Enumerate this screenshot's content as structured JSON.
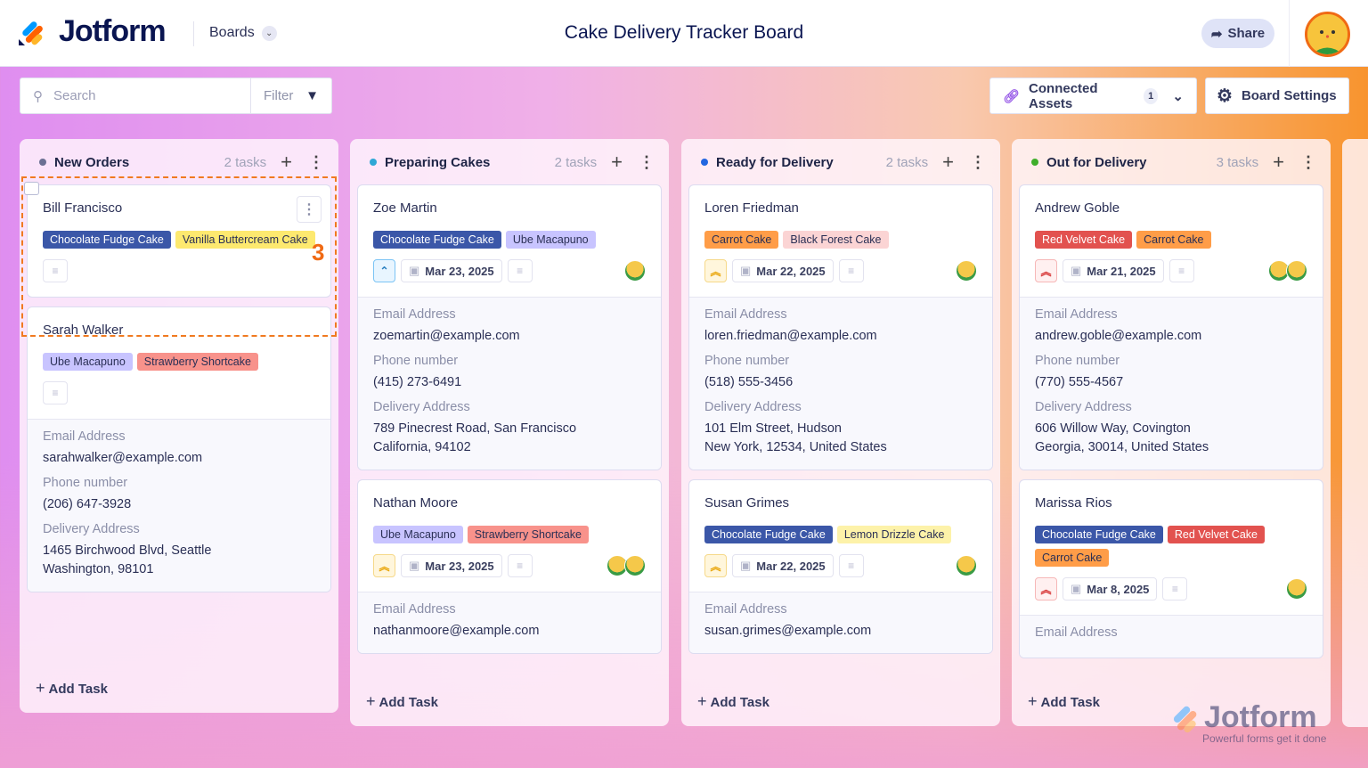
{
  "header": {
    "logo": "Jotform",
    "boards_label": "Boards",
    "title": "Cake Delivery Tracker Board",
    "share_label": "Share"
  },
  "toolbar": {
    "search_placeholder": "Search",
    "filter_label": "Filter",
    "connected_assets_label": "Connected Assets",
    "connected_assets_count": "1",
    "board_settings_label": "Board Settings"
  },
  "colors": {
    "accent": "#f06a14",
    "brand_navy": "#0a1551"
  },
  "tag_colors": {
    "Chocolate Fudge Cake": [
      "#3b57a8",
      "#ffffff"
    ],
    "Vanilla Buttercream Cake": [
      "#fde96f",
      "#2a2f55"
    ],
    "Ube Macapuno": [
      "#c8c4ff",
      "#2a2f55"
    ],
    "Strawberry Shortcake": [
      "#f8928b",
      "#2a2f55"
    ],
    "Carrot Cake": [
      "#ff9d48",
      "#2a2f55"
    ],
    "Black Forest Cake": [
      "#fbd4d4",
      "#2a2f55"
    ],
    "Red Velvet Cake": [
      "#e2524f",
      "#ffffff"
    ],
    "Lemon Drizzle Cake": [
      "#fdf2a9",
      "#2a2f55"
    ]
  },
  "labels": {
    "email": "Email Address",
    "phone": "Phone number",
    "address": "Delivery Address",
    "add_task": "Add Task"
  },
  "selection_badge": "3",
  "watermark": {
    "text": "Jotform",
    "tagline": "Powerful forms get it done"
  },
  "columns": [
    {
      "title": "New Orders",
      "count": "2 tasks",
      "dot": "#6b6f93",
      "cards": [
        {
          "name": "Bill Francisco",
          "tags": [
            "Chocolate Fudge Cake",
            "Vanilla Buttercream Cake"
          ],
          "selected": true
        },
        {
          "name": "Sarah Walker",
          "tags": [
            "Ube Macapuno",
            "Strawberry Shortcake"
          ],
          "email": "sarahwalker@example.com",
          "phone": "(206) 647-3928",
          "address": [
            "1465 Birchwood Blvd, Seattle",
            "Washington, 98101"
          ]
        }
      ]
    },
    {
      "title": "Preparing Cakes",
      "count": "2 tasks",
      "dot": "#2ea7d6",
      "cards": [
        {
          "name": "Zoe Martin",
          "tags": [
            "Chocolate Fudge Cake",
            "Ube Macapuno"
          ],
          "priority": "low",
          "date": "Mar 23, 2025",
          "avatars": 1,
          "email": "zoemartin@example.com",
          "phone": "(415) 273-6491",
          "address": [
            "789 Pinecrest Road, San Francisco",
            "California, 94102"
          ]
        },
        {
          "name": "Nathan Moore",
          "tags": [
            "Ube Macapuno",
            "Strawberry Shortcake"
          ],
          "priority": "medium",
          "date": "Mar 23, 2025",
          "avatars": 2,
          "email": "nathanmoore@example.com"
        }
      ]
    },
    {
      "title": "Ready for Delivery",
      "count": "2 tasks",
      "dot": "#2266e0",
      "cards": [
        {
          "name": "Loren Friedman",
          "tags": [
            "Carrot Cake",
            "Black Forest Cake"
          ],
          "priority": "medium",
          "date": "Mar 22, 2025",
          "avatars": 1,
          "email": "loren.friedman@example.com",
          "phone": "(518) 555-3456",
          "address": [
            "101 Elm Street, Hudson",
            "New York, 12534, United States"
          ]
        },
        {
          "name": "Susan Grimes",
          "tags": [
            "Chocolate Fudge Cake",
            "Lemon Drizzle Cake"
          ],
          "priority": "medium",
          "date": "Mar 22, 2025",
          "avatars": 1,
          "email": "susan.grimes@example.com"
        }
      ]
    },
    {
      "title": "Out for Delivery",
      "count": "3 tasks",
      "dot": "#3fae2a",
      "cards": [
        {
          "name": "Andrew Goble",
          "tags": [
            "Red Velvet Cake",
            "Carrot Cake"
          ],
          "priority": "high",
          "date": "Mar 21, 2025",
          "avatars": 2,
          "email": "andrew.goble@example.com",
          "phone": "(770) 555-4567",
          "address": [
            "606 Willow Way, Covington",
            "Georgia, 30014, United States"
          ]
        },
        {
          "name": "Marissa Rios",
          "tags": [
            "Chocolate Fudge Cake",
            "Red Velvet Cake",
            "Carrot Cake"
          ],
          "priority": "high",
          "date": "Mar 8, 2025",
          "avatars": 1,
          "email": "Email Address"
        }
      ]
    }
  ]
}
